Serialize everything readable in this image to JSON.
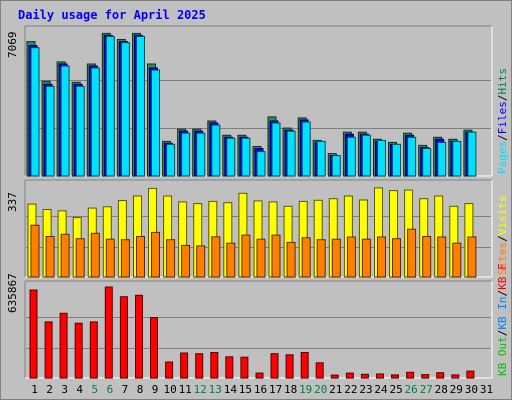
{
  "title": "Daily usage for April 2025",
  "chart_data": [
    {
      "type": "bar",
      "panel": "hits-files-pages",
      "ymax_label": "7069",
      "ylim": [
        0,
        7069
      ],
      "categories": [
        "1",
        "2",
        "3",
        "4",
        "5",
        "6",
        "7",
        "8",
        "9",
        "10",
        "11",
        "12",
        "13",
        "14",
        "15",
        "16",
        "17",
        "18",
        "19",
        "20",
        "21",
        "22",
        "23",
        "24",
        "25",
        "26",
        "27",
        "28",
        "29",
        "30",
        "31"
      ],
      "weekend_days": [
        "5",
        "6",
        "12",
        "13",
        "19",
        "20",
        "26",
        "27"
      ],
      "legend": [
        {
          "text": "Hits",
          "color": "#00805c"
        },
        {
          "text": "/",
          "color": "#000000"
        },
        {
          "text": "Files",
          "color": "#0000ff"
        },
        {
          "text": "/",
          "color": "#000000"
        },
        {
          "text": "Pages",
          "color": "#00e0ff"
        }
      ],
      "series": [
        {
          "name": "Hits",
          "color": "#2e8b57",
          "values": [
            6600,
            4650,
            5600,
            4600,
            5500,
            7000,
            6700,
            7000,
            5500,
            1700,
            2300,
            2300,
            2700,
            2000,
            2000,
            1450,
            2900,
            2350,
            2850,
            1750,
            1100,
            2150,
            2150,
            1800,
            1650,
            2100,
            1500,
            1900,
            1800,
            2250,
            0
          ]
        },
        {
          "name": "Files",
          "color": "#0000ff",
          "values": [
            6400,
            4500,
            5500,
            4500,
            5400,
            6900,
            6600,
            6900,
            5300,
            1600,
            2200,
            2200,
            2600,
            1900,
            1900,
            1350,
            2700,
            2250,
            2750,
            1650,
            1000,
            2050,
            2050,
            1700,
            1550,
            2000,
            1400,
            1800,
            1700,
            2150,
            0
          ]
        },
        {
          "name": "Pages",
          "color": "#00e0ff",
          "values": [
            6300,
            4400,
            5400,
            4400,
            5300,
            6850,
            6550,
            6850,
            5200,
            1550,
            2100,
            2100,
            2500,
            1850,
            1850,
            1200,
            2600,
            2200,
            2650,
            1700,
            1000,
            1900,
            2000,
            1750,
            1550,
            1900,
            1350,
            1650,
            1700,
            2150,
            0
          ]
        }
      ]
    },
    {
      "type": "bar",
      "panel": "visits-sites",
      "ymax_label": "337",
      "ylim": [
        0,
        337
      ],
      "legend": [
        {
          "text": "Visits",
          "color": "#ffff00"
        },
        {
          "text": "/",
          "color": "#000000"
        },
        {
          "text": "Sites",
          "color": "#ff8000"
        }
      ],
      "series": [
        {
          "name": "Visits",
          "color": "#ffff00",
          "values": [
            270,
            250,
            245,
            220,
            255,
            260,
            283,
            300,
            328,
            300,
            278,
            272,
            280,
            275,
            310,
            282,
            278,
            262,
            280,
            284,
            290,
            300,
            285,
            330,
            320,
            322,
            290,
            300,
            262,
            272,
            0
          ]
        },
        {
          "name": "Sites",
          "color": "#ff8000",
          "values": [
            192,
            150,
            158,
            142,
            162,
            140,
            138,
            150,
            165,
            138,
            117,
            115,
            149,
            125,
            155,
            140,
            155,
            128,
            145,
            138,
            140,
            148,
            140,
            148,
            142,
            177,
            150,
            148,
            125,
            148,
            0
          ]
        }
      ]
    },
    {
      "type": "bar",
      "panel": "kbytes",
      "ymax_label": "635867",
      "ylim": [
        0,
        635867
      ],
      "legend": [
        {
          "text": "KB F",
          "color": "#ff0000"
        },
        {
          "text": "/",
          "color": "#000000"
        },
        {
          "text": "KB In",
          "color": "#0080ff"
        },
        {
          "text": "/",
          "color": "#000000"
        },
        {
          "text": "KB Out",
          "color": "#00c000"
        }
      ],
      "series": [
        {
          "name": "KB F",
          "color": "#ff0000",
          "values": [
            615000,
            392000,
            452000,
            383000,
            392000,
            635867,
            568000,
            578000,
            422000,
            112000,
            175000,
            170000,
            178000,
            148000,
            145000,
            34000,
            170000,
            162000,
            178000,
            106000,
            20000,
            34000,
            26000,
            28000,
            22000,
            40000,
            24000,
            37000,
            22000,
            48000,
            0
          ]
        }
      ]
    }
  ]
}
